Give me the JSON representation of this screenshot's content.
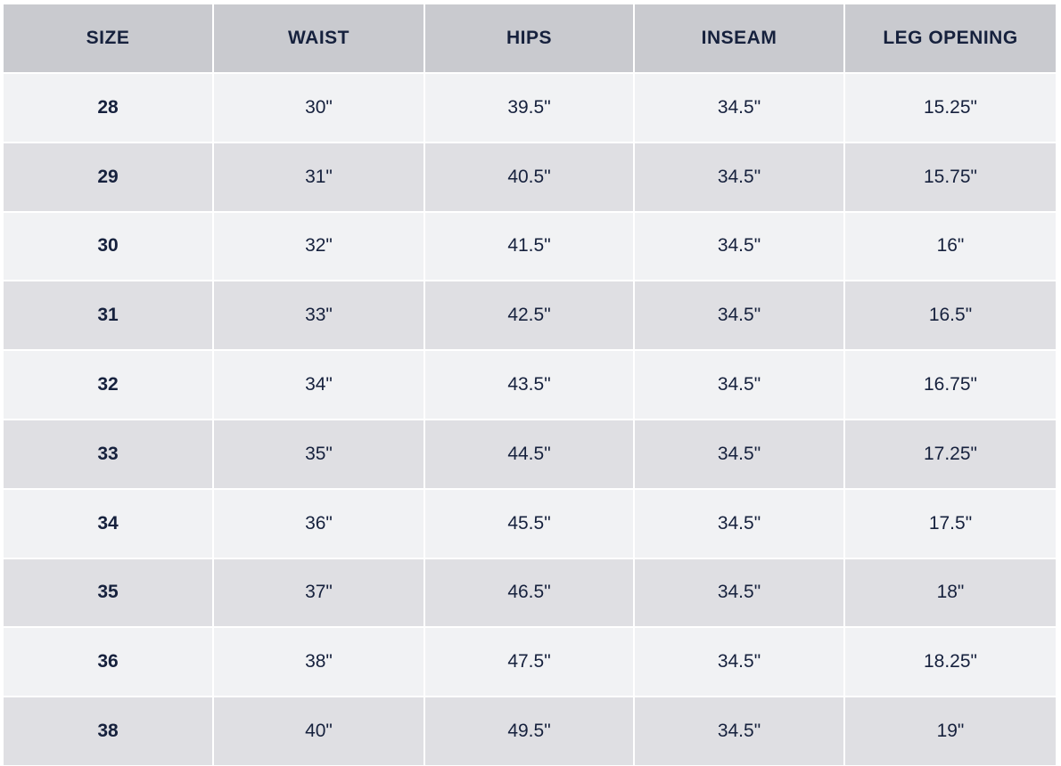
{
  "table": {
    "header": [
      "SIZE",
      "WAIST",
      "HIPS",
      "INSEAM",
      "LEG OPENING"
    ],
    "rows": [
      [
        "28",
        "30\"",
        "39.5\"",
        "34.5\"",
        "15.25\""
      ],
      [
        "29",
        "31\"",
        "40.5\"",
        "34.5\"",
        "15.75\""
      ],
      [
        "30",
        "32\"",
        "41.5\"",
        "34.5\"",
        "16\""
      ],
      [
        "31",
        "33\"",
        "42.5\"",
        "34.5\"",
        "16.5\""
      ],
      [
        "32",
        "34\"",
        "43.5\"",
        "34.5\"",
        "16.75\""
      ],
      [
        "33",
        "35\"",
        "44.5\"",
        "34.5\"",
        "17.25\""
      ],
      [
        "34",
        "36\"",
        "45.5\"",
        "34.5\"",
        "17.5\""
      ],
      [
        "35",
        "37\"",
        "46.5\"",
        "34.5\"",
        "18\""
      ],
      [
        "36",
        "38\"",
        "47.5\"",
        "34.5\"",
        "18.25\""
      ],
      [
        "38",
        "40\"",
        "49.5\"",
        "34.5\"",
        "19\""
      ]
    ]
  }
}
